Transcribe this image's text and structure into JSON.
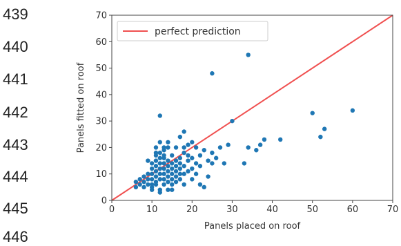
{
  "line_numbers": [
    "439",
    "440",
    "441",
    "442",
    "443",
    "444",
    "445",
    "446"
  ],
  "chart_data": {
    "type": "scatter",
    "title": "",
    "xlabel": "Panels placed on roof",
    "ylabel": "Panels fitted on roof",
    "xlim": [
      0,
      70
    ],
    "ylim": [
      0,
      70
    ],
    "xticks": [
      "0",
      "10",
      "20",
      "30",
      "40",
      "50",
      "60",
      "70"
    ],
    "yticks": [
      "0",
      "10",
      "20",
      "30",
      "40",
      "50",
      "60",
      "70"
    ],
    "grid": false,
    "legend": {
      "placement": "top-left",
      "entries": [
        "perfect prediction"
      ]
    },
    "colors": {
      "points": "#1f77b4",
      "line": "#f05050"
    },
    "reference_line": {
      "name": "perfect prediction",
      "x": [
        0,
        70
      ],
      "y": [
        0,
        70
      ]
    },
    "points": {
      "x": [
        6,
        6,
        7,
        7,
        8,
        8,
        8,
        9,
        9,
        9,
        9,
        10,
        10,
        10,
        10,
        10,
        10,
        10,
        11,
        11,
        11,
        11,
        11,
        11,
        11,
        11,
        12,
        12,
        12,
        12,
        12,
        12,
        12,
        12,
        12,
        13,
        13,
        13,
        13,
        13,
        13,
        13,
        13,
        14,
        14,
        14,
        14,
        14,
        14,
        14,
        15,
        15,
        15,
        15,
        15,
        15,
        15,
        16,
        16,
        16,
        16,
        16,
        16,
        17,
        17,
        17,
        17,
        17,
        18,
        18,
        18,
        18,
        18,
        19,
        19,
        19,
        19,
        20,
        20,
        20,
        20,
        21,
        21,
        21,
        22,
        22,
        22,
        23,
        23,
        24,
        24,
        25,
        25,
        26,
        27,
        28,
        29,
        30,
        33,
        34,
        36,
        37,
        38,
        42,
        50,
        52,
        53,
        60,
        12,
        25,
        34,
        11,
        13,
        18,
        17,
        14
      ],
      "y": [
        5,
        7,
        6,
        8,
        5,
        7,
        9,
        6,
        8,
        10,
        15,
        4,
        6,
        8,
        10,
        12,
        14,
        5,
        7,
        9,
        11,
        13,
        15,
        17,
        20,
        6,
        8,
        10,
        12,
        14,
        16,
        18,
        4,
        22,
        3,
        6,
        8,
        10,
        12,
        14,
        17,
        19,
        20,
        4,
        7,
        9,
        11,
        13,
        15,
        22,
        4,
        6,
        8,
        10,
        12,
        14,
        17,
        7,
        9,
        11,
        13,
        15,
        20,
        8,
        10,
        12,
        14,
        16,
        6,
        10,
        13,
        18,
        20,
        11,
        15,
        17,
        21,
        8,
        12,
        16,
        22,
        10,
        14,
        20,
        6,
        13,
        17,
        5,
        19,
        9,
        15,
        14,
        18,
        16,
        20,
        14,
        21,
        30,
        14,
        20,
        19,
        21,
        23,
        23,
        33,
        24,
        27,
        34,
        32,
        48,
        55,
        18,
        16,
        26,
        24,
        20
      ]
    }
  }
}
